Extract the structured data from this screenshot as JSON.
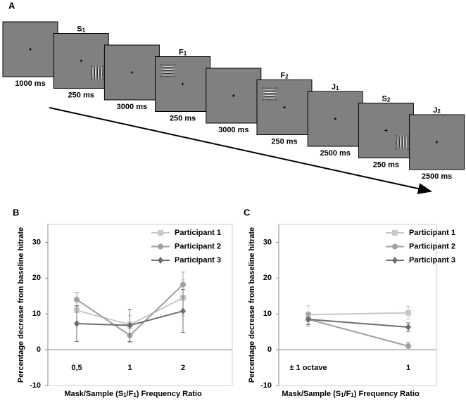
{
  "sequence": {
    "panel_label": "A",
    "frames": [
      {
        "duration": "1000 ms"
      },
      {
        "label": "S",
        "label_sub": "1",
        "duration": "250 ms",
        "grating": "vertical"
      },
      {
        "duration": "3000 ms"
      },
      {
        "label": "F",
        "label_sub": "1",
        "duration": "250 ms",
        "grating": "horizontal"
      },
      {
        "duration": "3000 ms"
      },
      {
        "label": "F",
        "label_sub": "2",
        "duration": "250 ms",
        "grating": "horizontal"
      },
      {
        "label": "J",
        "label_sub": "1",
        "duration": "2500 ms"
      },
      {
        "label": "S",
        "label_sub": "2",
        "duration": "250 ms",
        "grating": "vertical"
      },
      {
        "label": "J",
        "label_sub": "2",
        "duration": "2500 ms"
      }
    ]
  },
  "chart_data": [
    {
      "type": "line",
      "panel_label": "B",
      "y_label": "Percentage decrease from baseline hitrate",
      "x_label_parts": [
        "Mask/Sample (S",
        "1",
        "/F",
        "1",
        ") Frequency Ratio"
      ],
      "categories": [
        "0,5",
        "1",
        "2"
      ],
      "ylim": [
        -10,
        35
      ],
      "yticks": [
        -10,
        0,
        10,
        20,
        30
      ],
      "series": [
        {
          "name": "Participant 1",
          "color": "#c8c8c8",
          "marker": "square",
          "values": [
            11,
            7,
            14.5
          ],
          "errors": [
            3,
            2.5,
            5
          ]
        },
        {
          "name": "Participant 2",
          "color": "#a0a0a0",
          "marker": "circle",
          "values": [
            14,
            4,
            18.2
          ],
          "errors": [
            2,
            2,
            3.5
          ]
        },
        {
          "name": "Participant 3",
          "color": "#6e6e6e",
          "marker": "diamond",
          "values": [
            7.3,
            6.8,
            10.8
          ],
          "errors": [
            5,
            4.5,
            6
          ]
        }
      ]
    },
    {
      "type": "line",
      "panel_label": "C",
      "y_label": "Percentage decrease from baseline hitrate",
      "x_label_parts": [
        "Mask/Sample (S",
        "1",
        "/F",
        "1",
        ") Frequency Ratio"
      ],
      "categories": [
        "± 1 octave",
        "1"
      ],
      "ylim": [
        -10,
        35
      ],
      "yticks": [
        -10,
        0,
        10,
        20,
        30
      ],
      "series": [
        {
          "name": "Participant 1",
          "color": "#c8c8c8",
          "marker": "square",
          "values": [
            9.8,
            10.3
          ],
          "errors": [
            2.5,
            1.8
          ]
        },
        {
          "name": "Participant 2",
          "color": "#a0a0a0",
          "marker": "circle",
          "values": [
            8.5,
            1
          ],
          "errors": [
            2,
            1
          ]
        },
        {
          "name": "Participant 3",
          "color": "#6e6e6e",
          "marker": "diamond",
          "values": [
            8.5,
            6.3
          ],
          "errors": [
            1.5,
            1.2
          ]
        }
      ]
    }
  ]
}
